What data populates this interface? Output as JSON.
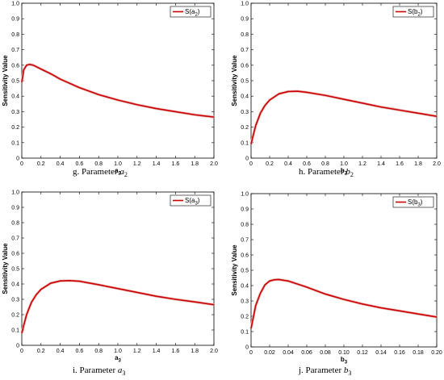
{
  "chart_data": [
    {
      "type": "line",
      "caption": "g. Parameter",
      "caption_symbol": "a",
      "caption_sub": "2",
      "xlabel": "a",
      "xlabel_sub": "2",
      "ylabel": "Sensitivity Value",
      "xlim": [
        0,
        2.0
      ],
      "ylim": [
        0,
        1.0
      ],
      "xticks": [
        "0",
        "0.2",
        "0.4",
        "0.6",
        "0.8",
        "1.0",
        "1.2",
        "1.4",
        "1.6",
        "1.8",
        "2.0"
      ],
      "yticks": [
        "0",
        "0.1",
        "0.2",
        "0.3",
        "0.4",
        "0.5",
        "0.6",
        "0.7",
        "0.8",
        "0.9",
        "1.0"
      ],
      "legend": "top-right",
      "grid": false,
      "series": [
        {
          "name": "S(a",
          "name_sub": "2",
          "name_suffix": ")",
          "color": "#cc0000",
          "x": [
            0.0,
            0.02,
            0.05,
            0.08,
            0.12,
            0.2,
            0.3,
            0.4,
            0.6,
            0.8,
            1.0,
            1.2,
            1.4,
            1.6,
            1.8,
            2.0
          ],
          "y": [
            0.49,
            0.57,
            0.6,
            0.605,
            0.6,
            0.575,
            0.545,
            0.51,
            0.455,
            0.41,
            0.375,
            0.345,
            0.32,
            0.3,
            0.28,
            0.265
          ]
        }
      ]
    },
    {
      "type": "line",
      "caption": "h. Parameter",
      "caption_symbol": "b",
      "caption_sub": "2",
      "xlabel": "b",
      "xlabel_sub": "2",
      "ylabel": "Sensitivity Value",
      "xlim": [
        0,
        2.0
      ],
      "ylim": [
        0,
        1.0
      ],
      "xticks": [
        "0",
        "0.2",
        "0.4",
        "0.6",
        "0.8",
        "1.0",
        "1.2",
        "1.4",
        "1.6",
        "1.8",
        "2.0"
      ],
      "yticks": [
        "0",
        "0.1",
        "0.2",
        "0.3",
        "0.4",
        "0.5",
        "0.6",
        "0.7",
        "0.8",
        "0.9",
        "1.0"
      ],
      "legend": "top-right",
      "grid": false,
      "series": [
        {
          "name": "S(b",
          "name_sub": "2",
          "name_suffix": ")",
          "color": "#cc0000",
          "x": [
            0.0,
            0.02,
            0.05,
            0.1,
            0.15,
            0.2,
            0.3,
            0.4,
            0.5,
            0.6,
            0.8,
            1.0,
            1.2,
            1.4,
            1.6,
            1.8,
            2.0
          ],
          "y": [
            0.09,
            0.14,
            0.21,
            0.29,
            0.34,
            0.375,
            0.415,
            0.43,
            0.432,
            0.425,
            0.405,
            0.38,
            0.355,
            0.33,
            0.31,
            0.29,
            0.27
          ]
        }
      ]
    },
    {
      "type": "line",
      "caption": "i. Parameter",
      "caption_symbol": "a",
      "caption_sub": "3",
      "xlabel": "a",
      "xlabel_sub": "3",
      "ylabel": "Sensitivity Value",
      "xlim": [
        0,
        2.0
      ],
      "ylim": [
        0,
        1.0
      ],
      "xticks": [
        "0",
        "0.2",
        "0.4",
        "0.6",
        "0.8",
        "1.0",
        "1.2",
        "1.4",
        "1.6",
        "1.8",
        "2.0"
      ],
      "yticks": [
        "0",
        "0.1",
        "0.2",
        "0.3",
        "0.4",
        "0.5",
        "0.6",
        "0.7",
        "0.8",
        "0.9",
        "1.0"
      ],
      "legend": "top-right",
      "grid": false,
      "series": [
        {
          "name": "S(a",
          "name_sub": "3",
          "name_suffix": ")",
          "color": "#cc0000",
          "x": [
            0.0,
            0.02,
            0.05,
            0.1,
            0.15,
            0.2,
            0.3,
            0.4,
            0.5,
            0.6,
            0.8,
            1.0,
            1.2,
            1.4,
            1.6,
            1.8,
            2.0
          ],
          "y": [
            0.08,
            0.13,
            0.2,
            0.28,
            0.33,
            0.365,
            0.405,
            0.42,
            0.422,
            0.418,
            0.395,
            0.37,
            0.345,
            0.32,
            0.3,
            0.283,
            0.265
          ]
        }
      ]
    },
    {
      "type": "line",
      "caption": "j. Parameter",
      "caption_symbol": "b",
      "caption_sub": "3",
      "xlabel": "b",
      "xlabel_sub": "3",
      "ylabel": "Sensitivity Value",
      "xlim": [
        0,
        0.2
      ],
      "ylim": [
        0,
        1.0
      ],
      "xticks": [
        "0",
        "0.02",
        "0.04",
        "0.06",
        "0.08",
        "0.10",
        "0.12",
        "0.14",
        "0.16",
        "0.18",
        "0.20"
      ],
      "yticks": [
        "0",
        "0.1",
        "0.2",
        "0.3",
        "0.4",
        "0.5",
        "0.6",
        "0.7",
        "0.8",
        "0.9",
        "1.0"
      ],
      "legend": "top-right",
      "grid": false,
      "series": [
        {
          "name": "S(b",
          "name_sub": "3",
          "name_suffix": ")",
          "color": "#cc0000",
          "x": [
            0.0,
            0.005,
            0.01,
            0.015,
            0.02,
            0.025,
            0.03,
            0.04,
            0.06,
            0.08,
            0.1,
            0.12,
            0.14,
            0.16,
            0.18,
            0.2
          ],
          "y": [
            0.12,
            0.27,
            0.35,
            0.405,
            0.43,
            0.438,
            0.44,
            0.43,
            0.39,
            0.345,
            0.31,
            0.28,
            0.255,
            0.235,
            0.215,
            0.195
          ]
        }
      ]
    }
  ]
}
